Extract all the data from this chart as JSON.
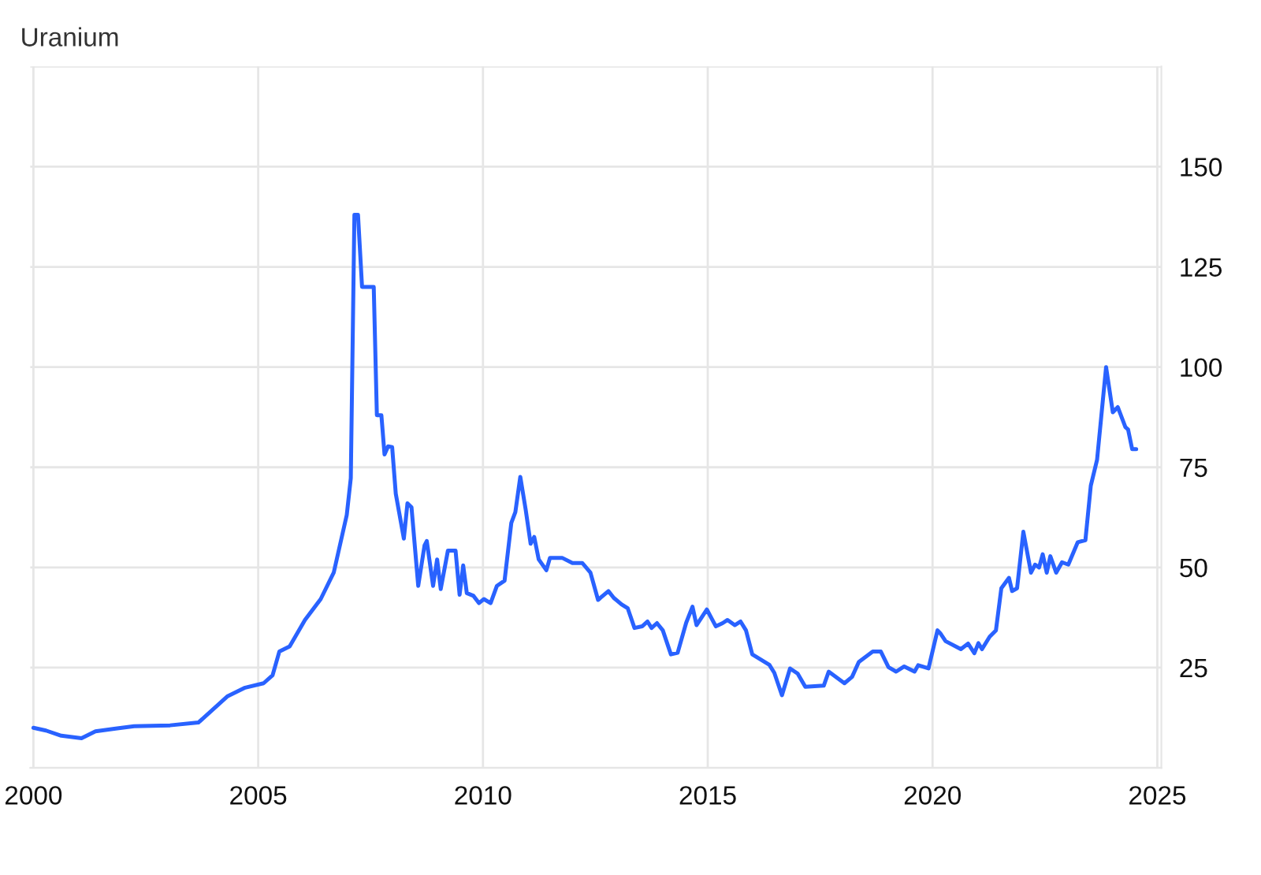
{
  "chart_data": {
    "type": "line",
    "title": "Uranium",
    "x": [
      2000.0,
      2000.28,
      2000.62,
      2001.07,
      2001.38,
      2001.83,
      2002.24,
      2003.04,
      2003.67,
      2004.31,
      2004.71,
      2005.12,
      2005.32,
      2005.47,
      2005.7,
      2006.04,
      2006.39,
      2006.68,
      2006.97,
      2007.06,
      2007.14,
      2007.22,
      2007.31,
      2007.57,
      2007.64,
      2007.74,
      2007.81,
      2007.89,
      2007.98,
      2008.06,
      2008.24,
      2008.32,
      2008.41,
      2008.56,
      2008.7,
      2008.75,
      2008.89,
      2008.98,
      2009.06,
      2009.22,
      2009.39,
      2009.48,
      2009.56,
      2009.64,
      2009.79,
      2009.91,
      2010.02,
      2010.17,
      2010.31,
      2010.48,
      2010.63,
      2010.72,
      2010.83,
      2010.95,
      2011.06,
      2011.14,
      2011.24,
      2011.41,
      2011.49,
      2011.76,
      2011.99,
      2012.21,
      2012.39,
      2012.56,
      2012.79,
      2012.91,
      2013.08,
      2013.22,
      2013.37,
      2013.54,
      2013.66,
      2013.75,
      2013.87,
      2014.0,
      2014.18,
      2014.33,
      2014.52,
      2014.66,
      2014.75,
      2014.98,
      2015.18,
      2015.33,
      2015.44,
      2015.6,
      2015.73,
      2015.85,
      2015.99,
      2016.37,
      2016.48,
      2016.65,
      2016.83,
      2017.0,
      2017.17,
      2017.58,
      2017.69,
      2018.04,
      2018.21,
      2018.36,
      2018.67,
      2018.85,
      2019.02,
      2019.19,
      2019.37,
      2019.6,
      2019.68,
      2019.91,
      2020.11,
      2020.17,
      2020.29,
      2020.63,
      2020.79,
      2020.93,
      2021.02,
      2021.1,
      2021.27,
      2021.41,
      2021.53,
      2021.7,
      2021.77,
      2021.88,
      2022.02,
      2022.19,
      2022.28,
      2022.37,
      2022.45,
      2022.54,
      2022.62,
      2022.75,
      2022.88,
      2023.02,
      2023.23,
      2023.4,
      2023.52,
      2023.66,
      2023.86,
      2024.01,
      2024.12,
      2024.29,
      2024.35,
      2024.44,
      2024.53
    ],
    "series": [
      {
        "color": "#2962ff",
        "values": [
          10,
          9.3,
          8,
          7.4,
          9.1,
          9.8,
          10.4,
          10.6,
          11.3,
          17.8,
          20,
          21.1,
          23.1,
          29,
          30.3,
          36.9,
          42.1,
          48.7,
          63.1,
          72.3,
          138,
          138,
          120,
          120,
          88,
          88,
          78.2,
          80.2,
          80,
          68.4,
          57.2,
          66,
          65,
          45.4,
          55.5,
          56.6,
          45.4,
          52,
          44.6,
          54.2,
          54.2,
          43.2,
          50.5,
          43.6,
          42.9,
          41.1,
          42.1,
          41.1,
          45.4,
          46.7,
          61.1,
          63.8,
          72.6,
          64.4,
          55.9,
          57.6,
          52,
          49.3,
          52.4,
          52.4,
          51.1,
          51.1,
          48.7,
          41.9,
          44.1,
          42.4,
          40.8,
          39.8,
          34.9,
          35.3,
          36.5,
          34.9,
          36.1,
          34.3,
          28.3,
          28.7,
          36.2,
          40.2,
          35.6,
          39.5,
          35.3,
          36.1,
          36.9,
          35.6,
          36.5,
          34.3,
          28.3,
          25.7,
          23.7,
          18.1,
          24.8,
          23.5,
          20.2,
          20.5,
          24,
          21.1,
          22.7,
          26.4,
          29,
          29,
          25.1,
          24,
          25.3,
          24,
          25.6,
          24.8,
          34.3,
          33.6,
          31.6,
          29.6,
          31,
          28.6,
          31.1,
          29.6,
          32.7,
          34.3,
          44.8,
          47.4,
          44.1,
          44.8,
          58.9,
          48.7,
          50.7,
          50,
          53.3,
          48.7,
          52.8,
          48.7,
          51.3,
          50.7,
          56.3,
          56.8,
          70.4,
          76.9,
          100,
          88.7,
          90,
          85,
          84.4,
          79.5,
          79.5
        ]
      }
    ],
    "xlim": [
      1999.93,
      2025.09
    ],
    "xticks": [
      2000,
      2005,
      2010,
      2015,
      2020,
      2025
    ],
    "ylim": [
      0,
      175
    ],
    "yticks": [
      {
        "value": 0,
        "label": null
      },
      25,
      50,
      75,
      100,
      125,
      150,
      {
        "value": 175,
        "label": null
      }
    ],
    "grid": true,
    "legend": false
  }
}
